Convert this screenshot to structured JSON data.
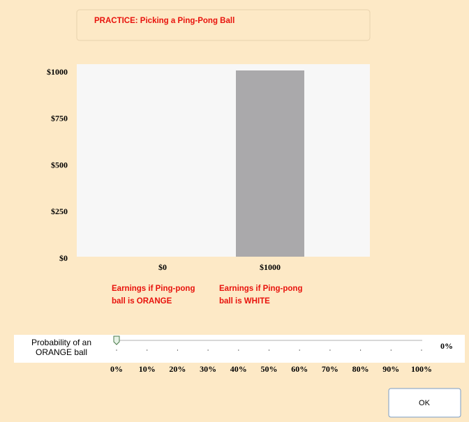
{
  "header": {
    "title": "PRACTICE: Picking a Ping-Pong Ball"
  },
  "chart_data": {
    "type": "bar",
    "categories": [
      "$0",
      "$1000"
    ],
    "values": [
      0,
      1000
    ],
    "color": "#aaa9ab",
    "ylim": [
      0,
      1000
    ],
    "yticks": [
      {
        "value": 0,
        "label": "$0"
      },
      {
        "value": 250,
        "label": "$250"
      },
      {
        "value": 500,
        "label": "$500"
      },
      {
        "value": 750,
        "label": "$750"
      },
      {
        "value": 1000,
        "label": "$1000"
      }
    ],
    "category_notes": [
      [
        "Earnings if Ping-pong",
        "ball is ORANGE"
      ],
      [
        "Earnings if Ping-pong",
        "ball is WHITE"
      ]
    ]
  },
  "slider": {
    "label": [
      "Probability of an",
      "ORANGE ball"
    ],
    "value": 0,
    "value_label": "0%",
    "xlim": [
      0,
      100
    ],
    "xticks": [
      {
        "value": 0,
        "label": "0%"
      },
      {
        "value": 10,
        "label": "10%"
      },
      {
        "value": 20,
        "label": "20%"
      },
      {
        "value": 30,
        "label": "30%"
      },
      {
        "value": 40,
        "label": "40%"
      },
      {
        "value": 50,
        "label": "50%"
      },
      {
        "value": 60,
        "label": "60%"
      },
      {
        "value": 70,
        "label": "70%"
      },
      {
        "value": 80,
        "label": "80%"
      },
      {
        "value": 90,
        "label": "90%"
      },
      {
        "value": 100,
        "label": "100%"
      }
    ]
  },
  "button": {
    "label": "OK"
  }
}
